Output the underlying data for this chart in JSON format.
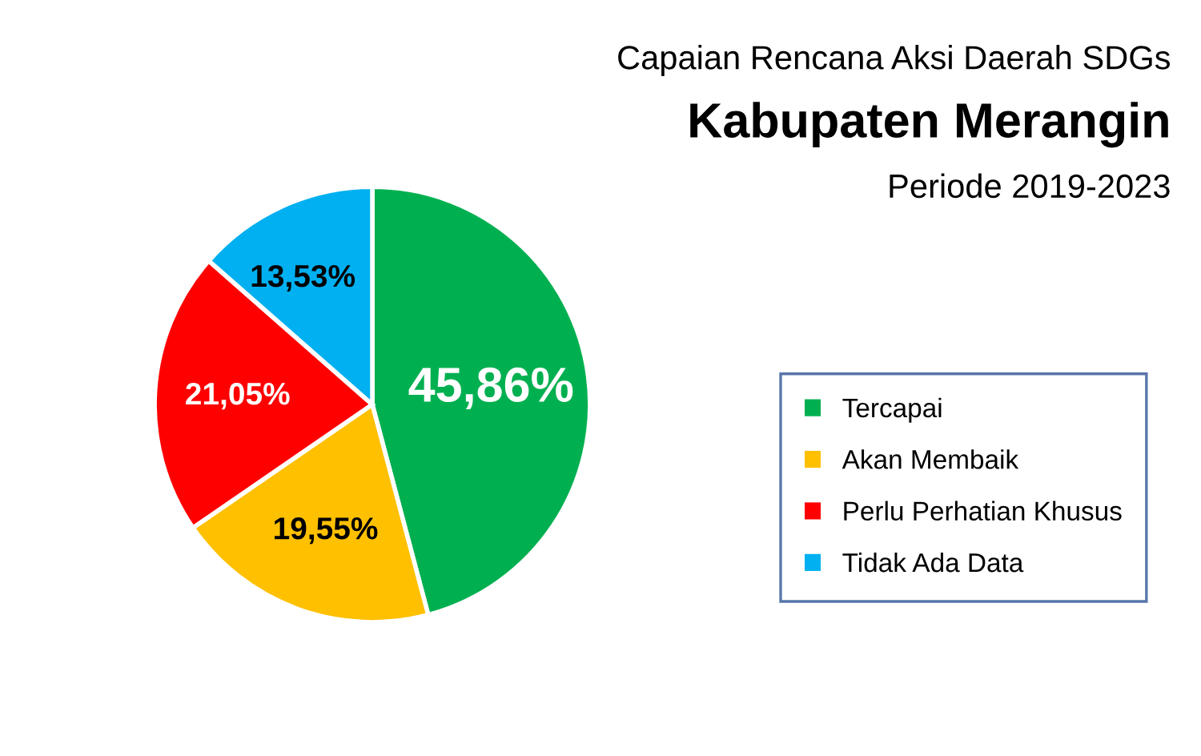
{
  "chart_data": {
    "type": "pie",
    "subtitle": "Capaian Rencana Aksi Daerah SDGs",
    "title": "Kabupaten Merangin",
    "annotations": [
      "Periode 2019-2023"
    ],
    "categories": [
      "Tercapai",
      "Akan Membaik",
      "Perlu Perhatian Khusus",
      "Tidak Ada Data"
    ],
    "values": [
      45.86,
      19.55,
      21.05,
      13.53
    ],
    "colors": [
      "#00b050",
      "#ffc000",
      "#ff0000",
      "#00b0f0"
    ],
    "value_labels": [
      "45,86%",
      "19,55%",
      "21,05%",
      "13,53%"
    ],
    "legend": "right"
  }
}
